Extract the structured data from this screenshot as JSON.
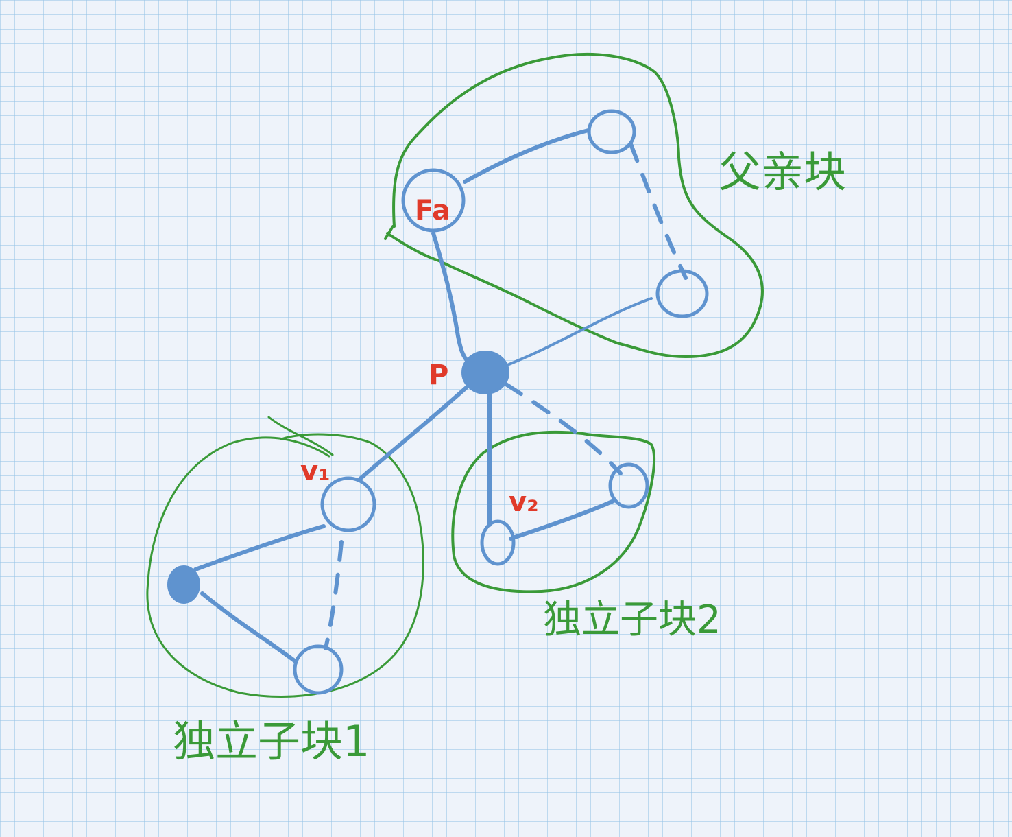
{
  "labels": {
    "fa": "Fa",
    "p": "P",
    "v1": "v₁",
    "v2": "v₂",
    "parent_block": "父亲块",
    "child_block_1": "独立子块1",
    "child_block_2": "独立子块2"
  },
  "colors": {
    "background": "#eef3fa",
    "grid": "#96c3e6",
    "block_outline": "#3a9a38",
    "graph": "#5f93cf",
    "node_label": "#e03a2a"
  }
}
